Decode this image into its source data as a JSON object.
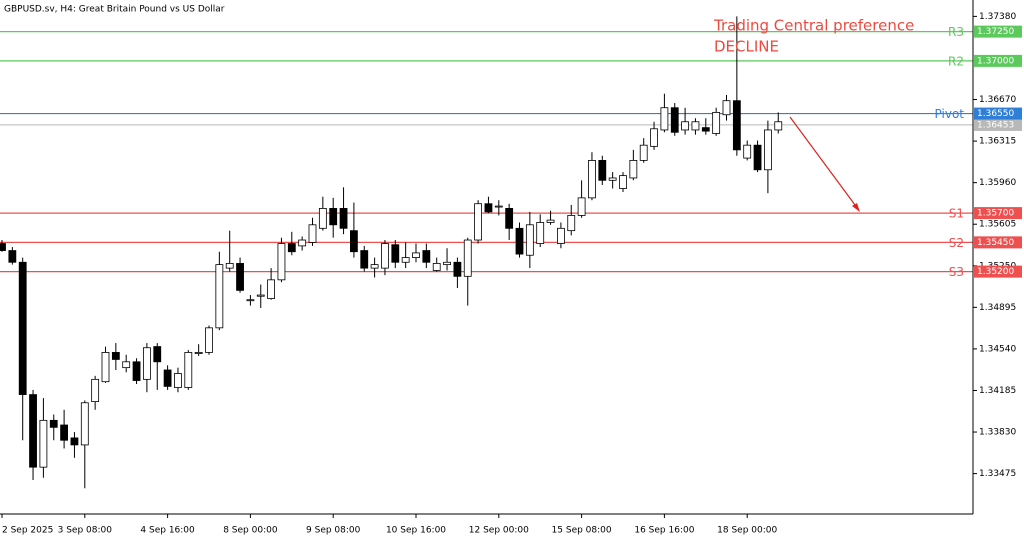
{
  "chart_data": {
    "type": "candlestick",
    "title": "GBPUSD.sv, H4:  Great Britain Pound vs US Dollar",
    "annotations": [
      "Trading Central preference",
      "DECLINE"
    ],
    "annotation_color": "#f0483e",
    "up_color": "#ffffff",
    "down_color": "#000000",
    "categories": [
      "2 Sep 2025",
      null,
      null,
      null,
      null,
      null,
      null,
      null,
      "3 Sep 08:00",
      null,
      null,
      null,
      null,
      null,
      null,
      null,
      "4 Sep 16:00",
      null,
      null,
      null,
      null,
      null,
      null,
      null,
      "8 Sep 00:00",
      null,
      null,
      null,
      null,
      null,
      null,
      null,
      "9 Sep 08:00",
      null,
      null,
      null,
      null,
      null,
      null,
      null,
      "10 Sep 16:00",
      null,
      null,
      null,
      null,
      null,
      null,
      null,
      "12 Sep 00:00",
      null,
      null,
      null,
      null,
      null,
      null,
      null,
      "15 Sep 08:00",
      null,
      null,
      null,
      null,
      null,
      null,
      null,
      "16 Sep 16:00",
      null,
      null,
      null,
      null,
      null,
      null,
      null,
      "18 Sep 00:00",
      null,
      null,
      null
    ],
    "open": [
      1.3544,
      1.3538,
      1.3528,
      1.3415,
      1.3353,
      1.3393,
      1.3389,
      1.3378,
      1.3372,
      1.3409,
      1.3426,
      1.3451,
      1.3438,
      1.3443,
      1.3428,
      1.3456,
      1.3436,
      1.3421,
      1.3421,
      1.345,
      1.3451,
      1.3472,
      1.3523,
      1.3527,
      1.3496,
      1.3499,
      1.3497,
      1.3513,
      1.3544,
      1.3542,
      1.3545,
      1.3557,
      1.3574,
      1.3574,
      1.3555,
      1.3538,
      1.3523,
      1.3523,
      1.3543,
      1.3528,
      1.3532,
      1.3538,
      1.3521,
      1.3526,
      1.3528,
      1.3516,
      1.3547,
      1.3578,
      1.3576,
      1.3574,
      1.3557,
      1.3534,
      1.3544,
      1.3562,
      1.3544,
      1.3555,
      1.3568,
      1.3583,
      1.3615,
      1.3598,
      1.3591,
      1.36,
      1.3615,
      1.3627,
      1.3641,
      1.366,
      1.3641,
      1.3641,
      1.3643,
      1.3638,
      1.3654,
      1.3666,
      1.3617,
      1.3628,
      1.3607,
      1.3641
    ],
    "high": [
      1.3547,
      1.3541,
      1.3532,
      1.3419,
      1.3412,
      1.3398,
      1.3402,
      1.3383,
      1.341,
      1.3431,
      1.3456,
      1.3459,
      1.3449,
      1.3446,
      1.3459,
      1.3459,
      1.344,
      1.3438,
      1.3453,
      1.3458,
      1.3474,
      1.3537,
      1.3555,
      1.3532,
      1.35,
      1.3509,
      1.3523,
      1.3549,
      1.3554,
      1.355,
      1.3566,
      1.3584,
      1.3583,
      1.3592,
      1.3579,
      1.3542,
      1.3532,
      1.3547,
      1.3547,
      1.3545,
      1.3544,
      1.3544,
      1.3532,
      1.354,
      1.3532,
      1.3549,
      1.3581,
      1.3584,
      1.3581,
      1.3578,
      1.3562,
      1.3571,
      1.3569,
      1.3572,
      1.3562,
      1.3577,
      1.3598,
      1.3622,
      1.3619,
      1.3605,
      1.3605,
      1.3624,
      1.3634,
      1.3648,
      1.3672,
      1.3664,
      1.366,
      1.3651,
      1.3651,
      1.366,
      1.3671,
      1.3738,
      1.3632,
      1.3632,
      1.3649,
      1.3656
    ],
    "low": [
      1.3537,
      1.3526,
      1.3376,
      1.3342,
      1.3344,
      1.3376,
      1.3369,
      1.3361,
      1.3335,
      1.3402,
      1.3425,
      1.3436,
      1.3434,
      1.3424,
      1.3417,
      1.3419,
      1.3419,
      1.3417,
      1.3419,
      1.3448,
      1.3449,
      1.347,
      1.352,
      1.3502,
      1.3491,
      1.3489,
      1.3496,
      1.3511,
      1.3534,
      1.3538,
      1.3542,
      1.3555,
      1.3549,
      1.3552,
      1.3532,
      1.352,
      1.3515,
      1.3517,
      1.3523,
      1.3523,
      1.3528,
      1.3523,
      1.352,
      1.3521,
      1.3506,
      1.3491,
      1.3544,
      1.357,
      1.3568,
      1.3547,
      1.3532,
      1.3523,
      1.3541,
      1.356,
      1.354,
      1.3551,
      1.3566,
      1.3581,
      1.3594,
      1.3591,
      1.3588,
      1.3598,
      1.3613,
      1.3624,
      1.3639,
      1.3636,
      1.3637,
      1.3637,
      1.3637,
      1.3636,
      1.3649,
      1.3619,
      1.3615,
      1.3605,
      1.3587,
      1.3638
    ],
    "close": [
      1.3538,
      1.3528,
      1.3415,
      1.3353,
      1.3393,
      1.3387,
      1.3376,
      1.3372,
      1.3408,
      1.3428,
      1.3451,
      1.3445,
      1.3443,
      1.3427,
      1.3455,
      1.3443,
      1.3422,
      1.3433,
      1.3451,
      1.3451,
      1.3472,
      1.3526,
      1.3527,
      1.3504,
      1.3496,
      1.35,
      1.3513,
      1.3544,
      1.3537,
      1.3547,
      1.356,
      1.3574,
      1.356,
      1.3557,
      1.3537,
      1.3523,
      1.3526,
      1.3544,
      1.3528,
      1.3532,
      1.3536,
      1.3528,
      1.3527,
      1.3528,
      1.3516,
      1.3547,
      1.3578,
      1.3571,
      1.3576,
      1.3557,
      1.3535,
      1.356,
      1.3562,
      1.3564,
      1.3557,
      1.3568,
      1.3583,
      1.3615,
      1.3598,
      1.36,
      1.3602,
      1.3615,
      1.3628,
      1.3642,
      1.366,
      1.3639,
      1.3648,
      1.3648,
      1.364,
      1.3656,
      1.3666,
      1.3624,
      1.3628,
      1.3607,
      1.3641,
      1.3648
    ],
    "levels": [
      {
        "name": "R3",
        "value": 1.3725,
        "label": "1.37250",
        "color": "#5cc95c"
      },
      {
        "name": "R2",
        "value": 1.37,
        "label": "1.37000",
        "color": "#5cc95c"
      },
      {
        "name": "Pivot",
        "value": 1.3655,
        "label": "1.36550",
        "color": "#2f7fd9"
      },
      {
        "name": "S1",
        "value": 1.357,
        "label": "1.35700",
        "color": "#ee5050"
      },
      {
        "name": "S2",
        "value": 1.3545,
        "label": "1.35450",
        "color": "#ee5050"
      },
      {
        "name": "S3",
        "value": 1.352,
        "label": "1.35200",
        "color": "#ee5050"
      }
    ],
    "last_price": 1.36453,
    "last_price_color": "#b8b8b8",
    "ylim": [
      1.3313,
      1.3752
    ],
    "yticks": [
      {
        "value": 1.3738,
        "label": "1.37380"
      },
      {
        "value": 1.3667,
        "label": "1.36670"
      },
      1.36315,
      {
        "value": 1.3596,
        "label": "1.35960"
      },
      1.35605,
      {
        "value": 1.3525,
        "label": "1.35250"
      },
      1.34895,
      {
        "value": 1.3454,
        "label": "1.34540"
      },
      1.34185,
      {
        "value": 1.3383,
        "label": "1.33830"
      },
      1.33475
    ]
  }
}
